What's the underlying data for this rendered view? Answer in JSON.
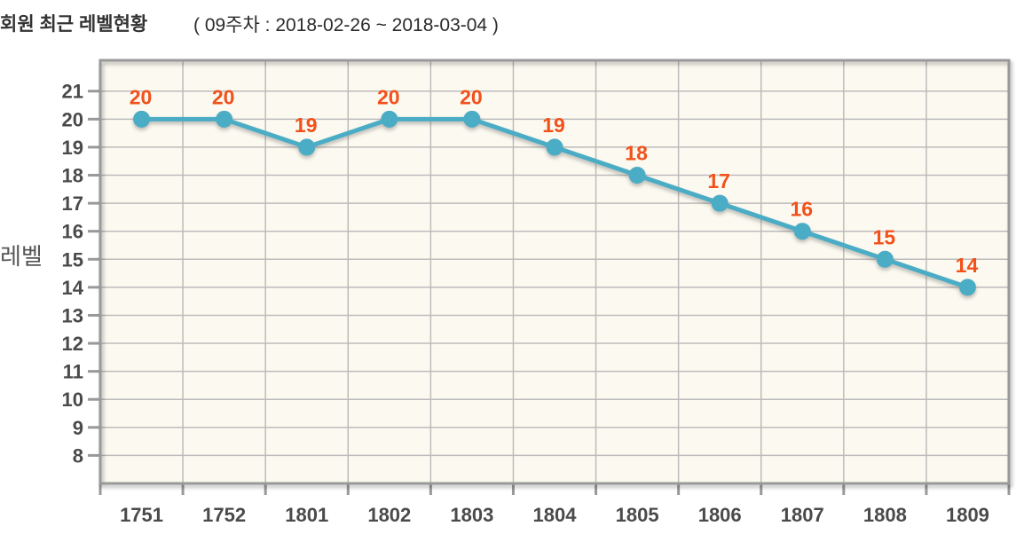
{
  "header": {
    "title": "회원 최근 레벨현황",
    "subtitle": "( 09주차 : 2018-02-26 ~ 2018-03-04 )"
  },
  "chart_data": {
    "type": "line",
    "title": "회원 최근 레벨현황",
    "subtitle": "( 09주차 : 2018-02-26 ~ 2018-03-04 )",
    "xlabel": "",
    "ylabel": "레벨",
    "categories": [
      "1751",
      "1752",
      "1801",
      "1802",
      "1803",
      "1804",
      "1805",
      "1806",
      "1807",
      "1808",
      "1809"
    ],
    "series": [
      {
        "name": "레벨",
        "values": [
          20,
          20,
          19,
          20,
          20,
          19,
          18,
          17,
          16,
          15,
          14
        ]
      }
    ],
    "point_labels_shown": true,
    "ylim": [
      7,
      22.1
    ],
    "ytick_min": 8,
    "ytick_max": 21,
    "ytick_step": 1,
    "grid": true,
    "legend": "none",
    "colors": {
      "line": "#4AACC5",
      "marker": "#4AACC5",
      "point_label": "#F2511B",
      "plot_bg": "#FCFAF0",
      "grid": "#BBBBBB",
      "border": "#999999",
      "tick": "#999999",
      "axis_text": "#4A4A4A",
      "title_text": "#333333",
      "ylabel_text": "#555555"
    }
  }
}
